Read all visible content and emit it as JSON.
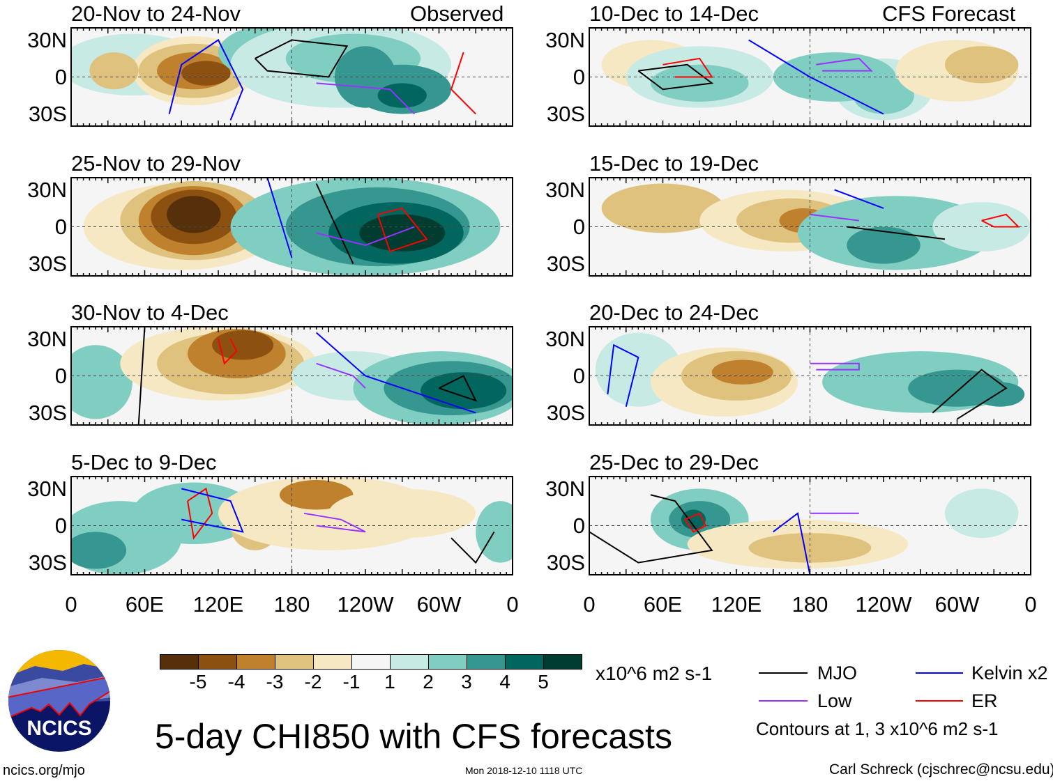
{
  "labels": {
    "observed": "Observed",
    "forecast": "CFS Forecast"
  },
  "lat_ticks": [
    "30N",
    "0",
    "30S"
  ],
  "lon_ticks": [
    "0",
    "60E",
    "120E",
    "180",
    "120W",
    "60W",
    "0"
  ],
  "panels_left": [
    "20-Nov to 24-Nov",
    "25-Nov to 29-Nov",
    "30-Nov to 4-Dec",
    "5-Dec to 9-Dec"
  ],
  "panels_right": [
    "10-Dec to 14-Dec",
    "15-Dec to 19-Dec",
    "20-Dec to 24-Dec",
    "25-Dec to 29-Dec"
  ],
  "colorbar": {
    "ticks": [
      "-5",
      "-4",
      "-3",
      "-2",
      "-1",
      "1",
      "2",
      "3",
      "4",
      "5"
    ],
    "colors": [
      "#55300a",
      "#8c5110",
      "#bf812d",
      "#dfc27d",
      "#f6e8c3",
      "#f5f5f5",
      "#c7eae5",
      "#80cdc1",
      "#35978f",
      "#01665e",
      "#003c30"
    ],
    "units": "x10^6 m2 s-1"
  },
  "legend": {
    "mjo": "MJO",
    "kelvin": "Kelvin x2",
    "low": "Low",
    "er": "ER",
    "contours": "Contours at 1, 3 x10^6 m2 s-1",
    "colors": {
      "mjo": "#000000",
      "kelvin": "#0000ff",
      "low": "#9933ff",
      "er": "#ff0000"
    }
  },
  "title": "5-day CHI850 with CFS forecasts",
  "logo_text": "NCICS",
  "footer": {
    "url": "ncics.org/mjo",
    "timestamp": "Mon 2018-12-10 1118 UTC",
    "author": "Carl Schreck (cjschrec@ncsu.edu)"
  },
  "chart_data": {
    "type": "heatmap",
    "variable": "5-day CHI850 anomaly",
    "units": "x10^6 m2 s-1",
    "levels": [
      -5,
      -4,
      -3,
      -2,
      -1,
      1,
      2,
      3,
      4,
      5
    ],
    "x_range": [
      "0",
      "0"
    ],
    "y_range": [
      "40S",
      "40N"
    ]
  }
}
